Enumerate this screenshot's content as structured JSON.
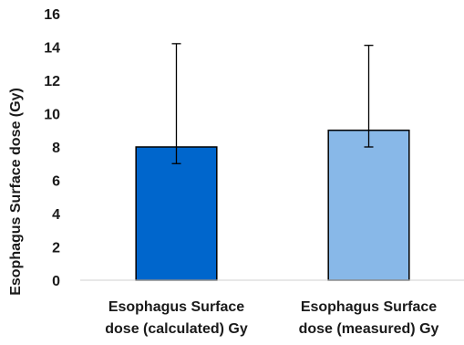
{
  "chart_data": {
    "type": "bar",
    "title": "",
    "xlabel": "",
    "ylabel": "Esophagus Surface dose (Gy)",
    "ylim": [
      0,
      16
    ],
    "yticks": [
      0,
      2,
      4,
      6,
      8,
      10,
      12,
      14,
      16
    ],
    "grid": false,
    "legend": "none",
    "categories": [
      [
        "Esophagus Surface",
        "dose (calculated) Gy"
      ],
      [
        "Esophagus Surface",
        "dose (measured) Gy"
      ]
    ],
    "values": [
      8,
      9
    ],
    "error_upper": [
      14.2,
      14.1
    ],
    "error_lower": [
      7.0,
      8.0
    ],
    "colors": [
      "#0066cc",
      "#88b8e8"
    ],
    "bar_border": "#000000",
    "axis_color": "#d0d0d0",
    "error_color": "#000000"
  }
}
